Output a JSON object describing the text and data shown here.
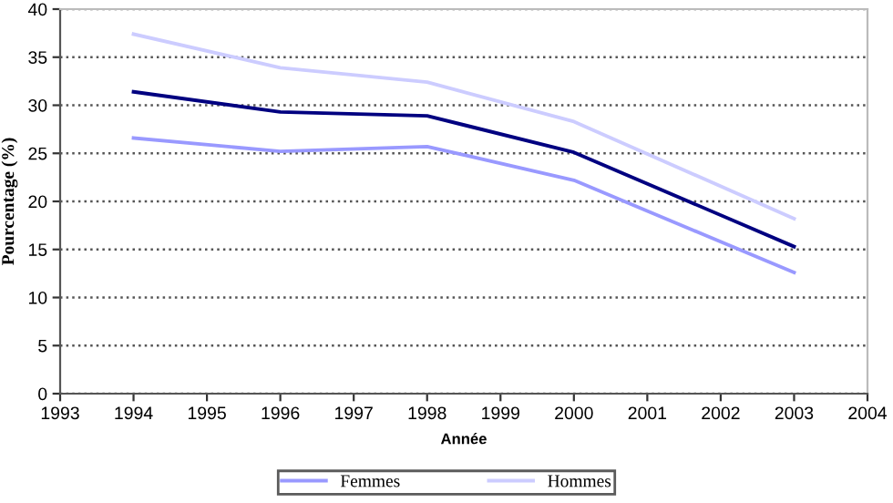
{
  "chart_data": {
    "type": "line",
    "xlabel": "Année",
    "ylabel": "Pourcentage (%)",
    "x": [
      1994,
      1996,
      1998,
      2000,
      2003
    ],
    "series": [
      {
        "name": "Femmes",
        "color": "#9999ff",
        "values": [
          26.6,
          25.2,
          25.7,
          22.2,
          12.6
        ]
      },
      {
        "name": "Hommes",
        "color": "#ccccff",
        "values": [
          37.4,
          33.9,
          32.4,
          28.3,
          18.2
        ]
      },
      {
        "color": "#000080",
        "values": [
          31.4,
          29.3,
          28.9,
          25.1,
          15.3
        ]
      }
    ],
    "xlim": [
      1993,
      2004
    ],
    "xticks": [
      1993,
      1994,
      1995,
      1996,
      1997,
      1998,
      1999,
      2000,
      2001,
      2002,
      2003,
      2004
    ],
    "ylim": [
      0,
      40
    ],
    "yticks": [
      0,
      5,
      10,
      15,
      20,
      25,
      30,
      35,
      40
    ],
    "grid": "y",
    "legend": "bottom",
    "marker": "none",
    "line_style": "solid"
  }
}
